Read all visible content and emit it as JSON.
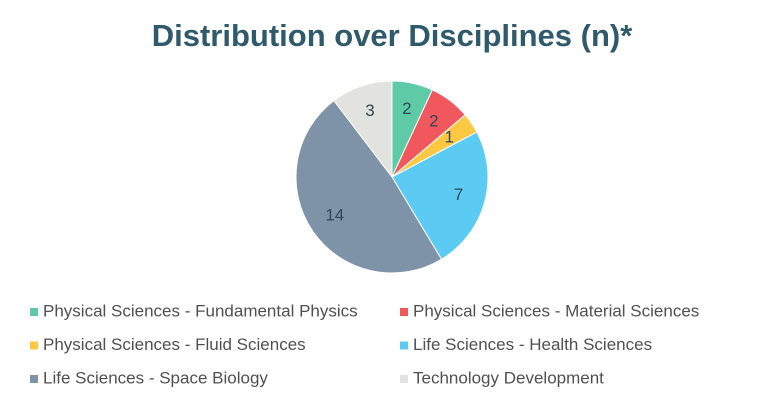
{
  "chart_data": {
    "type": "pie",
    "title": "Distribution over Disciplines (n)*",
    "categories": [
      "Physical Sciences - Fundamental Physics",
      "Physical Sciences - Material Sciences",
      "Physical Sciences - Fluid Sciences",
      "Life Sciences - Health Sciences",
      "Life Sciences - Space Biology",
      "Technology Development"
    ],
    "values": [
      2,
      2,
      1,
      7,
      14,
      3
    ],
    "colors": [
      "#5ecba6",
      "#f0585e",
      "#fdc843",
      "#5ccbf4",
      "#7f93a8",
      "#e2e2de"
    ]
  }
}
